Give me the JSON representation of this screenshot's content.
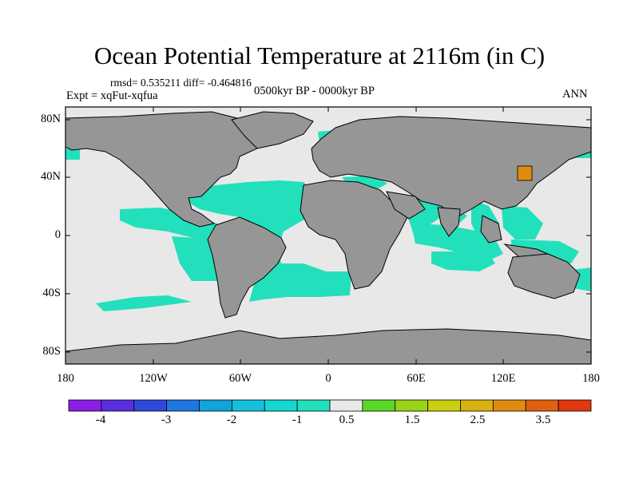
{
  "title": "Ocean Potential Temperature at 2116m (in C)",
  "stats_line": "rmsd= 0.535211 diff= -0.464816",
  "experiment": "Expt = xqFut-xqfua",
  "period": "0500kyr BP - 0000kyr BP",
  "season": "ANN",
  "lat_labels": [
    "80N",
    "40N",
    "0",
    "40S",
    "80S"
  ],
  "lon_labels": [
    "180",
    "120W",
    "60W",
    "0",
    "60E",
    "120E",
    "180"
  ],
  "colorbar": {
    "labels": [
      "-4",
      "-3",
      "-2",
      "-1",
      "0.5",
      "1.5",
      "2.5",
      "3.5"
    ],
    "colors": [
      "#8a1de6",
      "#5a2ee0",
      "#2f48dc",
      "#1f78e0",
      "#12a2dc",
      "#14c0dc",
      "#16d6d2",
      "#22e0bc",
      "#e8e8e8",
      "#5ad828",
      "#9ad418",
      "#c8d010",
      "#d8b010",
      "#e08a10",
      "#e06010",
      "#e03810"
    ]
  },
  "legend_colors": {
    "land": "#969696",
    "ocean_near_zero": "#e8e8e8",
    "ocean_cooling": "#22e0bc",
    "ocean_warming": "#e08a10"
  }
}
